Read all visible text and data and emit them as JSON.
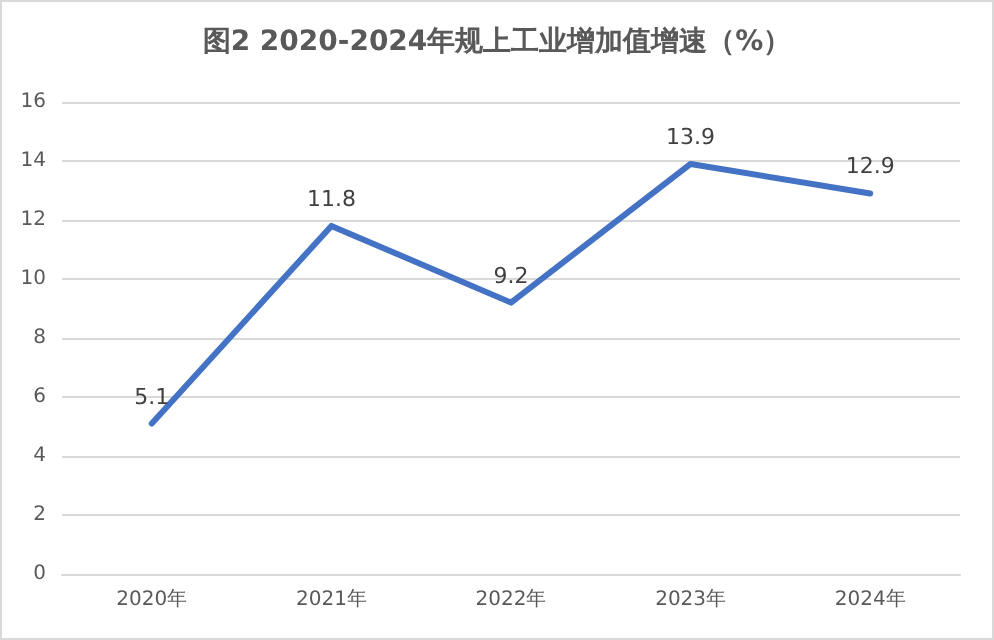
{
  "chart_data": {
    "type": "line",
    "title": "图2 2020-2024年规上工业增加值增速（%）",
    "categories": [
      "2020年",
      "2021年",
      "2022年",
      "2023年",
      "2024年"
    ],
    "series": [
      {
        "color": "#4472c4",
        "values": [
          5.1,
          11.8,
          9.2,
          13.9,
          12.9
        ]
      }
    ],
    "ylim": [
      0,
      16
    ],
    "yticks": [
      0,
      2,
      4,
      6,
      8,
      10,
      12,
      14,
      16
    ],
    "grid": "y",
    "data_labels": true,
    "marker": "none",
    "line_style": "solid"
  }
}
